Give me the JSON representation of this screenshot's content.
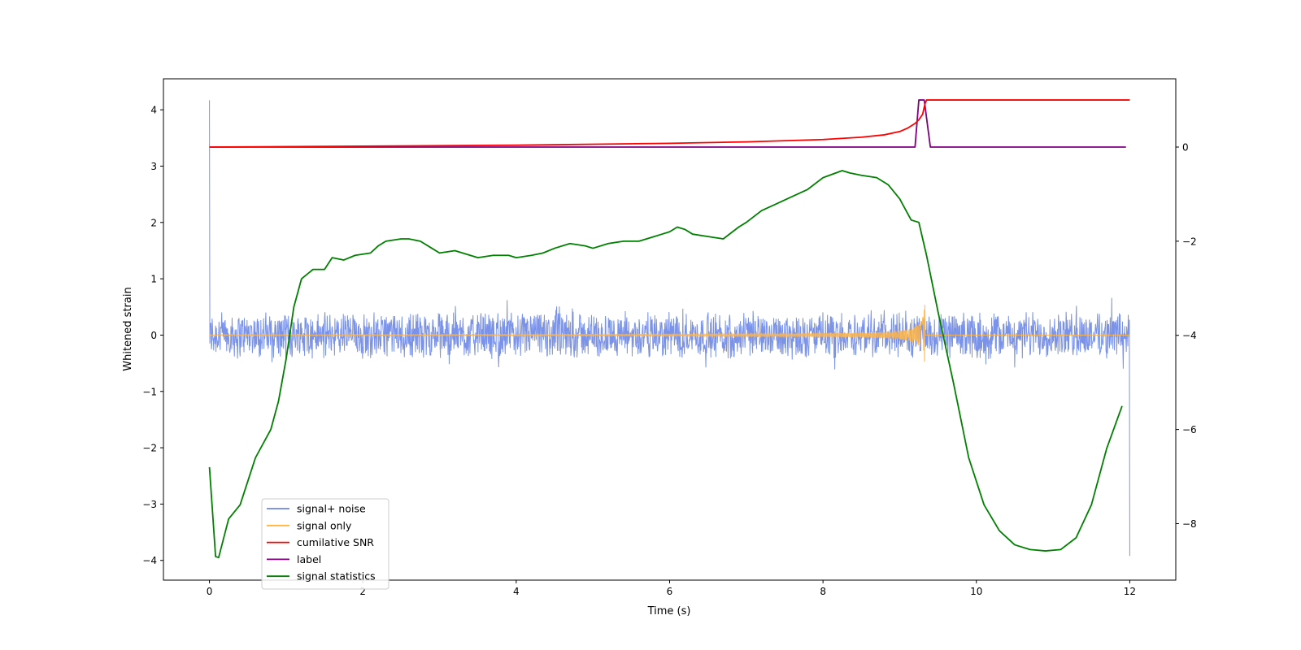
{
  "chart_data": {
    "type": "line",
    "title": "",
    "xlabel": "Time (s)",
    "ylabel_left": "Whitened strain",
    "ylabel_right": "",
    "xlim": [
      -0.6,
      12.6
    ],
    "ylim_left": [
      -4.35,
      4.55
    ],
    "ylim_right": [
      -9.2,
      1.45
    ],
    "x_ticks": [
      {
        "value": 0,
        "label": "0"
      },
      {
        "value": 2,
        "label": "2"
      },
      {
        "value": 4,
        "label": "4"
      },
      {
        "value": 6,
        "label": "6"
      },
      {
        "value": 8,
        "label": "8"
      },
      {
        "value": 10,
        "label": "10"
      },
      {
        "value": 12,
        "label": "12"
      }
    ],
    "y_ticks_left": [
      {
        "value": 4,
        "label": "4"
      },
      {
        "value": 3,
        "label": "3"
      },
      {
        "value": 2,
        "label": "2"
      },
      {
        "value": 1,
        "label": "1"
      },
      {
        "value": 0,
        "label": "0"
      },
      {
        "value": -1,
        "label": "−1"
      },
      {
        "value": -2,
        "label": "−2"
      },
      {
        "value": -3,
        "label": "−3"
      },
      {
        "value": -4,
        "label": "−4"
      }
    ],
    "y_ticks_right": [
      {
        "value": 0,
        "label": "0"
      },
      {
        "value": -2,
        "label": "−2"
      },
      {
        "value": -4,
        "label": "−4"
      },
      {
        "value": -6,
        "label": "−6"
      },
      {
        "value": -8,
        "label": "−8"
      }
    ],
    "legend": {
      "location": "lower-left",
      "entries": [
        {
          "name": "signal+ noise",
          "color": "#6b86e6"
        },
        {
          "name": "signal only",
          "color": "#ffb547"
        },
        {
          "name": "cumilative SNR",
          "color": "#ff0000"
        },
        {
          "name": "label",
          "color": "#800080"
        },
        {
          "name": "signal statistics",
          "color": "#008000"
        }
      ]
    },
    "series": [
      {
        "name": "signal+ noise",
        "axis": "left",
        "color": "#6b86e6",
        "description_values": {
          "x_range": [
            0,
            12
          ],
          "noise_amplitude": 0.45,
          "spike_start": 4.17,
          "spike_end": -3.92
        }
      },
      {
        "name": "signal only",
        "axis": "left",
        "color": "#ffb547",
        "chirp_peak_time": 9.33,
        "chirp_peak_amplitude": 0.6
      },
      {
        "name": "cumilative SNR",
        "axis": "right",
        "color": "#ff0000",
        "x": [
          0,
          2,
          4,
          6,
          7,
          8,
          8.5,
          8.8,
          9.0,
          9.1,
          9.2,
          9.25,
          9.3,
          9.33,
          9.35,
          10,
          11,
          12
        ],
        "y": [
          0.0,
          0.02,
          0.04,
          0.08,
          0.11,
          0.16,
          0.21,
          0.26,
          0.33,
          0.4,
          0.5,
          0.58,
          0.7,
          0.92,
          1.0,
          1.0,
          1.0,
          1.0
        ]
      },
      {
        "name": "label",
        "axis": "right",
        "color": "#800080",
        "x": [
          0,
          9.2,
          9.25,
          9.32,
          9.4,
          11.95
        ],
        "y": [
          0,
          0,
          1,
          1,
          0,
          0
        ]
      },
      {
        "name": "signal statistics",
        "axis": "right",
        "color": "#008000",
        "x": [
          0,
          0.08,
          0.12,
          0.25,
          0.4,
          0.5,
          0.6,
          0.8,
          0.9,
          1.0,
          1.1,
          1.2,
          1.35,
          1.5,
          1.6,
          1.75,
          1.9,
          2.1,
          2.2,
          2.3,
          2.5,
          2.6,
          2.75,
          2.9,
          3.0,
          3.2,
          3.4,
          3.5,
          3.7,
          3.9,
          4.0,
          4.2,
          4.35,
          4.5,
          4.7,
          4.9,
          5.0,
          5.2,
          5.4,
          5.6,
          5.8,
          5.9,
          6.0,
          6.1,
          6.2,
          6.3,
          6.5,
          6.7,
          6.9,
          7.0,
          7.2,
          7.4,
          7.6,
          7.8,
          8.0,
          8.25,
          8.35,
          8.5,
          8.7,
          8.85,
          9.0,
          9.15,
          9.25,
          9.35,
          9.5,
          9.7,
          9.9,
          10.1,
          10.3,
          10.5,
          10.7,
          10.9,
          11.1,
          11.3,
          11.5,
          11.7,
          11.9
        ],
        "y": [
          -6.8,
          -8.7,
          -8.72,
          -7.9,
          -7.6,
          -7.1,
          -6.6,
          -6.0,
          -5.4,
          -4.5,
          -3.4,
          -2.8,
          -2.6,
          -2.6,
          -2.35,
          -2.4,
          -2.3,
          -2.25,
          -2.1,
          -2.0,
          -1.95,
          -1.95,
          -2.0,
          -2.15,
          -2.25,
          -2.2,
          -2.3,
          -2.35,
          -2.3,
          -2.3,
          -2.35,
          -2.3,
          -2.25,
          -2.15,
          -2.05,
          -2.1,
          -2.15,
          -2.05,
          -2.0,
          -2.0,
          -1.9,
          -1.85,
          -1.8,
          -1.7,
          -1.75,
          -1.85,
          -1.9,
          -1.95,
          -1.7,
          -1.6,
          -1.35,
          -1.2,
          -1.05,
          -0.9,
          -0.65,
          -0.5,
          -0.55,
          -0.6,
          -0.65,
          -0.8,
          -1.1,
          -1.55,
          -1.6,
          -2.3,
          -3.5,
          -5.0,
          -6.6,
          -7.6,
          -8.15,
          -8.45,
          -8.55,
          -8.58,
          -8.55,
          -8.3,
          -7.6,
          -6.4,
          -5.5
        ]
      }
    ]
  }
}
